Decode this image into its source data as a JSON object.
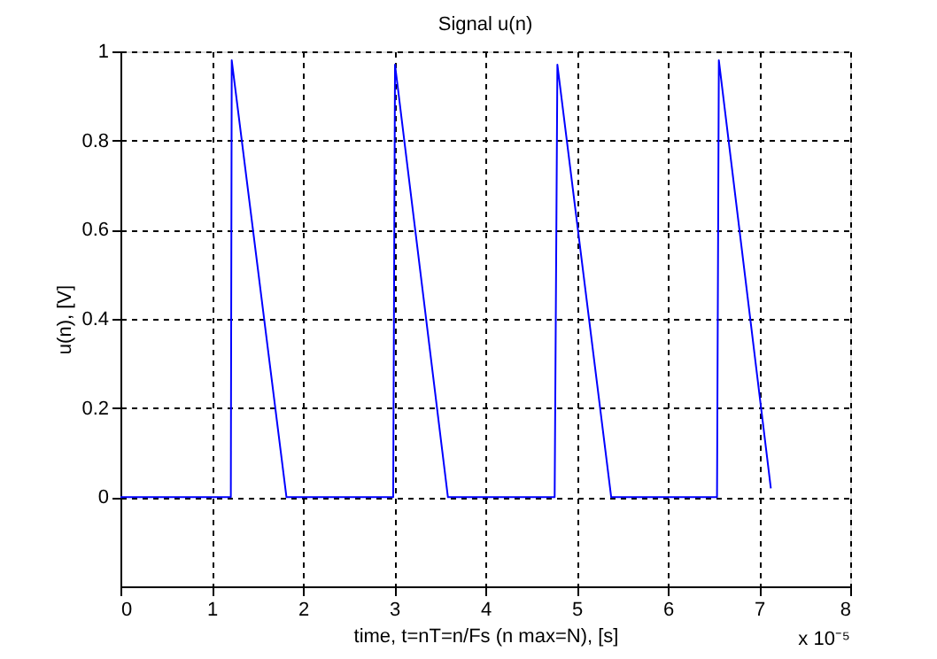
{
  "chart_data": {
    "type": "line",
    "title": "Signal u(n)",
    "xlabel": "time, t=nT=n/Fs (n max=N), [s]",
    "ylabel": "u(n), [V]",
    "x": [
      0,
      1.21,
      1.22,
      1.82,
      2.99,
      3.01,
      3.59,
      4.76,
      4.79,
      5.38,
      6.54,
      6.56,
      7.13
    ],
    "series": [
      {
        "color": "#0000ff",
        "values": [
          0,
          0,
          0.98,
          0,
          0,
          0.97,
          0,
          0,
          0.97,
          0,
          0,
          0.98,
          0.02
        ]
      }
    ],
    "xlim": [
      0,
      8
    ],
    "ylim": [
      -0.2,
      1
    ],
    "xticks": [
      0,
      1,
      2,
      3,
      4,
      5,
      6,
      7,
      8
    ],
    "yticks": [
      0,
      0.2,
      0.4,
      0.6,
      0.8,
      1
    ],
    "grid": true,
    "line_style": "solid",
    "marker": "none",
    "annotations": [
      "x 10⁻⁵"
    ]
  }
}
